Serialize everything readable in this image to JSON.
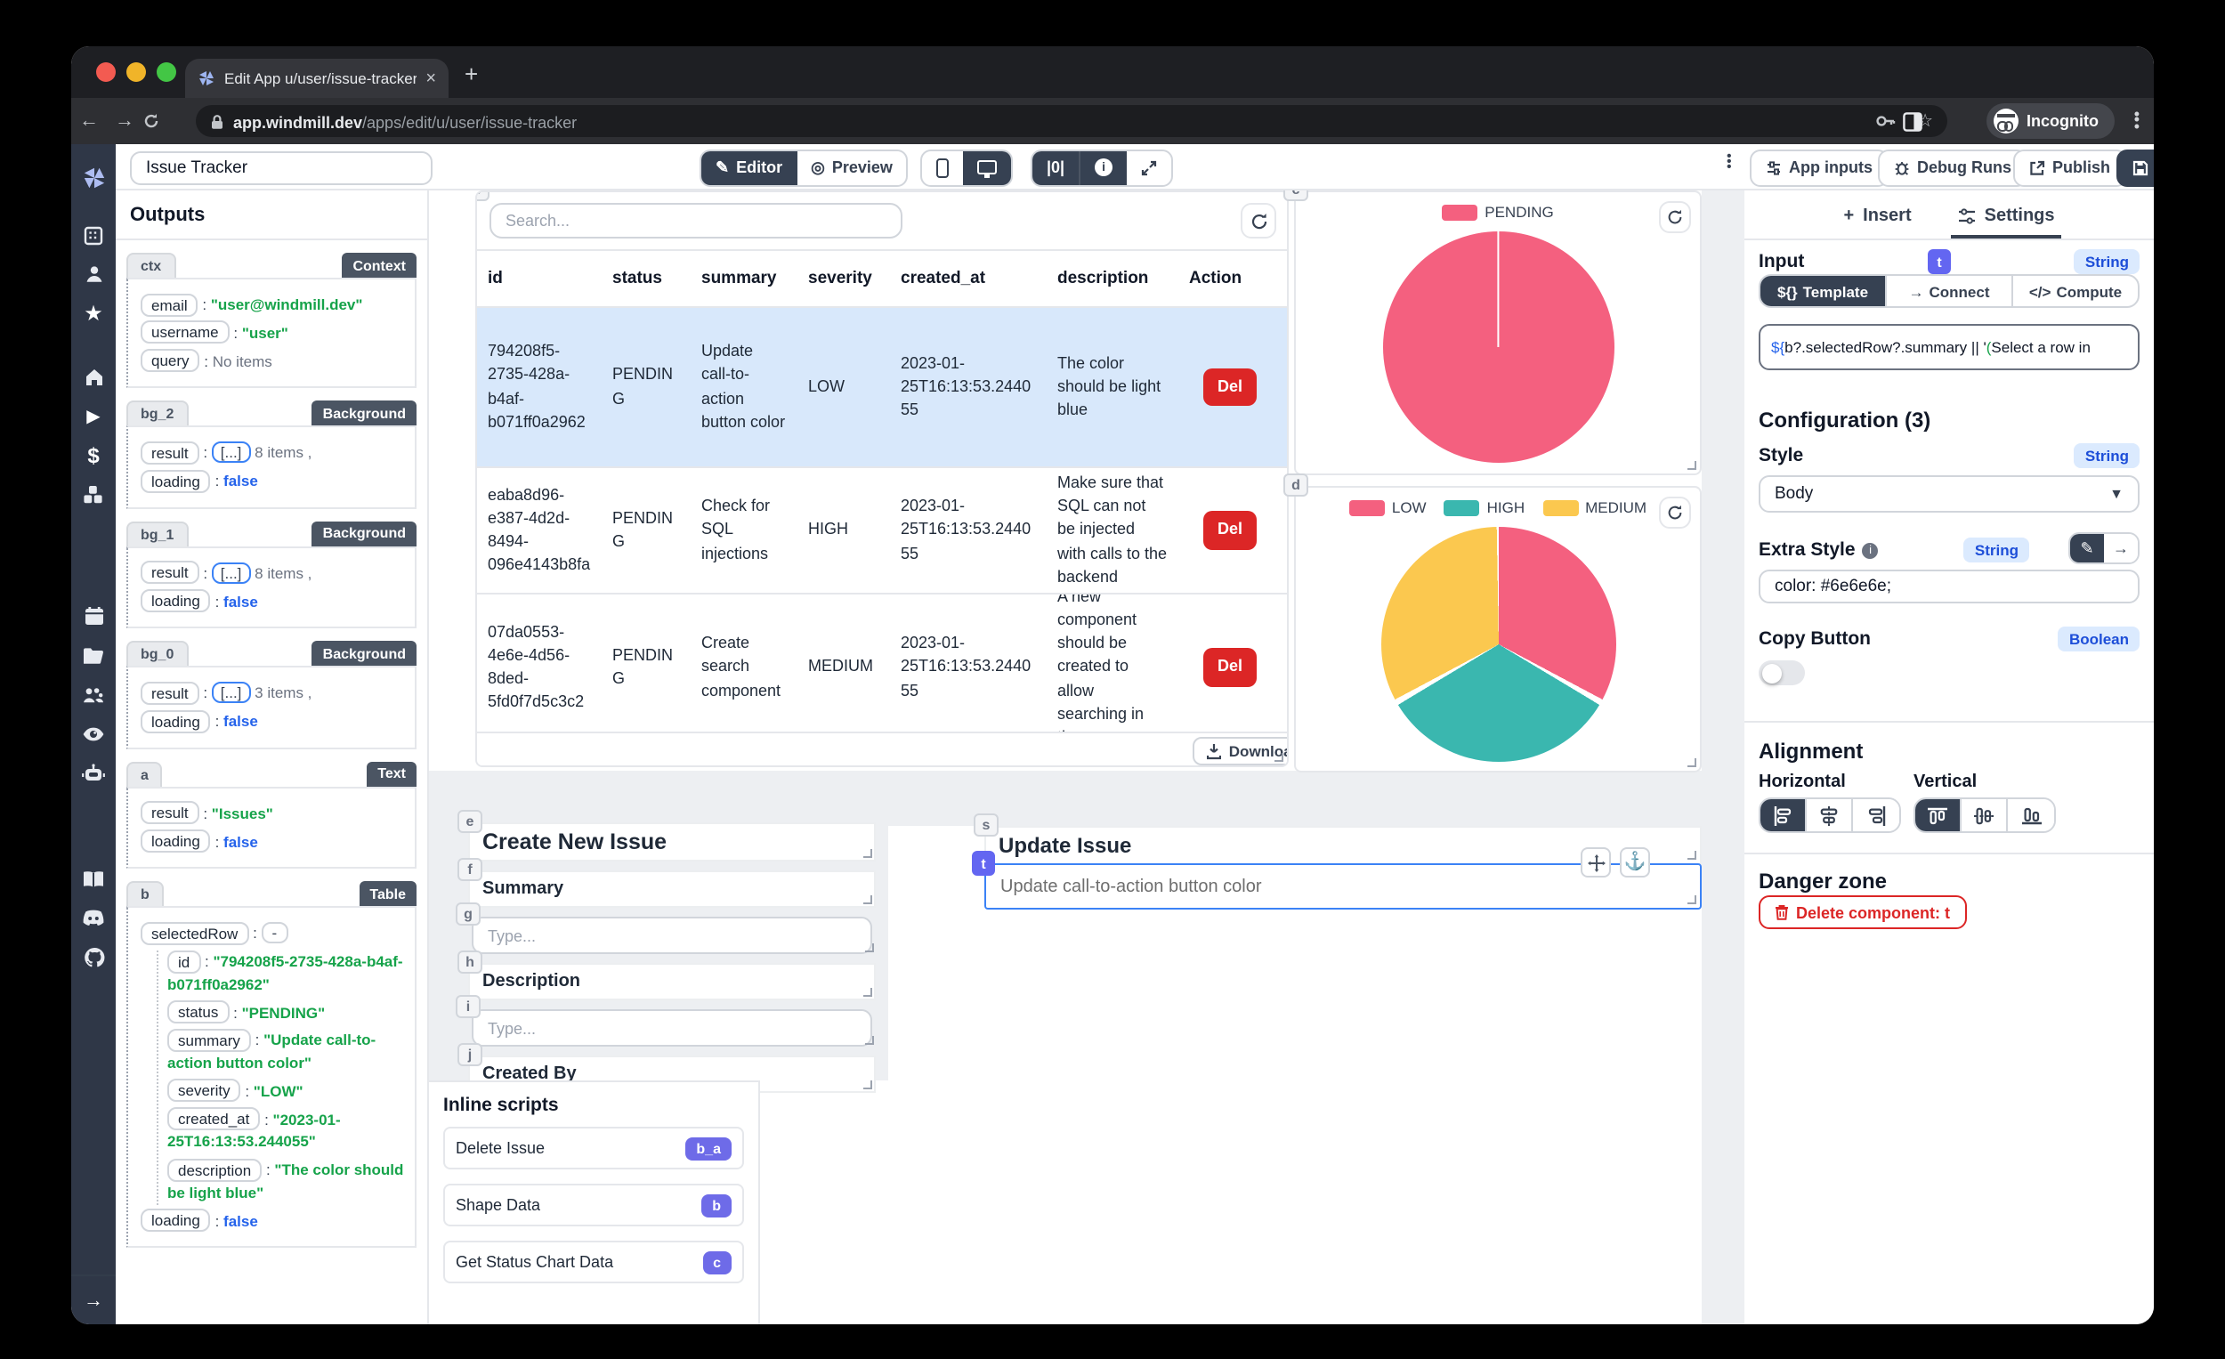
{
  "browser": {
    "tab_title": "Edit App u/user/issue-tracker |",
    "close_tab": "×",
    "url_domain": "app.windmill.dev",
    "url_path": "/apps/edit/u/user/issue-tracker",
    "incognito_label": "Incognito"
  },
  "toolbar": {
    "app_name": "Issue Tracker",
    "editor_label": "Editor",
    "preview_label": "Preview",
    "zero_label": "|0|",
    "info_label": "i",
    "app_inputs_label": "App inputs",
    "debug_runs_label": "Debug Runs",
    "publish_label": "Publish",
    "save_label": "Save"
  },
  "outputs": {
    "title": "Outputs",
    "sections": [
      {
        "id": "ctx",
        "type": "Context",
        "rows": [
          {
            "key": "email",
            "value": "\"user@windmill.dev\"",
            "cls": "v-string"
          },
          {
            "key": "username",
            "value": "\"user\"",
            "cls": "v-string"
          },
          {
            "key": "query",
            "value": "No items",
            "cls": "v-muted"
          }
        ]
      },
      {
        "id": "bg_2",
        "type": "Background",
        "rows": [
          {
            "key": "result",
            "value": "8 items ,",
            "cls": "v-muted",
            "bracket": true
          },
          {
            "key": "loading",
            "value": "false",
            "cls": "v-bool"
          }
        ]
      },
      {
        "id": "bg_1",
        "type": "Background",
        "rows": [
          {
            "key": "result",
            "value": "8 items ,",
            "cls": "v-muted",
            "bracket": true
          },
          {
            "key": "loading",
            "value": "false",
            "cls": "v-bool"
          }
        ]
      },
      {
        "id": "bg_0",
        "type": "Background",
        "rows": [
          {
            "key": "result",
            "value": "3 items ,",
            "cls": "v-muted",
            "bracket": true
          },
          {
            "key": "loading",
            "value": "false",
            "cls": "v-bool"
          }
        ]
      },
      {
        "id": "a",
        "type": "Text",
        "rows": [
          {
            "key": "result",
            "value": "\"Issues\"",
            "cls": "v-string"
          },
          {
            "key": "loading",
            "value": "false",
            "cls": "v-bool"
          }
        ]
      },
      {
        "id": "b",
        "type": "Table",
        "rows": [
          {
            "key": "selectedRow",
            "value": "-",
            "cls": "v-muted",
            "dash": true
          },
          {
            "key": "id",
            "value": "\"794208f5-2735-428a-b4af-b071ff0a2962\"",
            "cls": "v-string",
            "indent": true
          },
          {
            "key": "status",
            "value": "\"PENDING\"",
            "cls": "v-string",
            "indent": true
          },
          {
            "key": "summary",
            "value": "\"Update call-to-action button color\"",
            "cls": "v-string",
            "indent": true
          },
          {
            "key": "severity",
            "value": "\"LOW\"",
            "cls": "v-string",
            "indent": true
          },
          {
            "key": "created_at",
            "value": "\"2023-01-25T16:13:53.244055\"",
            "cls": "v-string",
            "indent": true
          },
          {
            "key": "description",
            "value": "\"The color should be light blue\"",
            "cls": "v-string",
            "indent": true
          },
          {
            "key": "loading",
            "value": "false",
            "cls": "v-bool"
          }
        ]
      }
    ]
  },
  "table": {
    "badge": "b",
    "search_placeholder": "Search...",
    "columns": [
      "id",
      "status",
      "summary",
      "severity",
      "created_at",
      "description",
      "Action"
    ],
    "rows": [
      {
        "selected": true,
        "cells": [
          "794208f5-2735-428a-b4af-b071ff0a2962",
          "PENDING",
          "Update call-to-action button color",
          "LOW",
          "2023-01-25T16:13:53.244055",
          "The color should be light blue"
        ]
      },
      {
        "selected": false,
        "cells": [
          "eaba8d96-e387-4d2d-8494-096e4143b8fa",
          "PENDING",
          "Check for SQL injections",
          "HIGH",
          "2023-01-25T16:13:53.244055",
          "Make sure that SQL can not be injected with calls to the backend"
        ]
      },
      {
        "selected": false,
        "cells": [
          "07da0553-4e6e-4d56-8ded-5fd0f7d5c3c2",
          "PENDING",
          "Create search component",
          "MEDIUM",
          "2023-01-25T16:13:53.244055",
          "A new component should be created to allow searching in the"
        ]
      }
    ],
    "delete_label": "Del",
    "download_label": "Download"
  },
  "chart_data": [
    {
      "type": "pie",
      "badge": "c",
      "legend": [
        "PENDING"
      ],
      "values": [
        3
      ],
      "colors": [
        "#f4607f"
      ],
      "legend_position": "top"
    },
    {
      "type": "pie",
      "badge": "d",
      "legend": [
        "LOW",
        "HIGH",
        "MEDIUM"
      ],
      "values": [
        1,
        1,
        1
      ],
      "colors": [
        "#f4607f",
        "#3ab7af",
        "#fbc84f"
      ],
      "legend_position": "top"
    }
  ],
  "form": {
    "badges": [
      "e",
      "f",
      "g",
      "h",
      "i",
      "j"
    ],
    "title": "Create New Issue",
    "summary_label": "Summary",
    "summary_placeholder": "Type...",
    "description_label": "Description",
    "description_placeholder": "Type...",
    "created_by_label": "Created By"
  },
  "update": {
    "badge_s": "s",
    "badge_t": "t",
    "title": "Update Issue",
    "value": "Update call-to-action button color"
  },
  "inline_scripts": {
    "title": "Inline scripts",
    "items": [
      {
        "label": "Delete Issue",
        "badge": "b_a"
      },
      {
        "label": "Shape Data",
        "badge": "b"
      },
      {
        "label": "Get Status Chart Data",
        "badge": "c"
      }
    ]
  },
  "panel": {
    "insert_tab": "Insert",
    "settings_tab": "Settings",
    "input_label": "Input",
    "input_badge": "t",
    "input_type": "String",
    "template_tab": "Template",
    "template_icon": "${}",
    "connect_tab": "Connect",
    "connect_icon": "→",
    "compute_tab": "Compute",
    "compute_icon": "</>",
    "code_segments": [
      {
        "t": "${",
        "c": "cb"
      },
      {
        "t": "b?.selectedRow?.summary || '",
        "c": ""
      },
      {
        "t": "(",
        "c": "cg"
      },
      {
        "t": "Select a row in",
        "c": ""
      }
    ],
    "config_title": "Configuration (3)",
    "style_label": "Style",
    "style_type": "String",
    "style_value": "Body",
    "extra_style_label": "Extra Style",
    "extra_style_type": "String",
    "extra_style_value": "color: #6e6e6e;",
    "copy_label": "Copy Button",
    "copy_type": "Boolean",
    "alignment_title": "Alignment",
    "horizontal_label": "Horizontal",
    "vertical_label": "Vertical",
    "danger_title": "Danger zone",
    "delete_label": "Delete component: t"
  },
  "colors": {
    "accent_dark": "#364152",
    "indigo": "#6366f1",
    "pink": "#f4607f",
    "teal": "#3ab7af",
    "yellow": "#fbc84f",
    "red": "#dc2626",
    "string_green": "#16a34a",
    "bool_blue": "#2563eb"
  }
}
